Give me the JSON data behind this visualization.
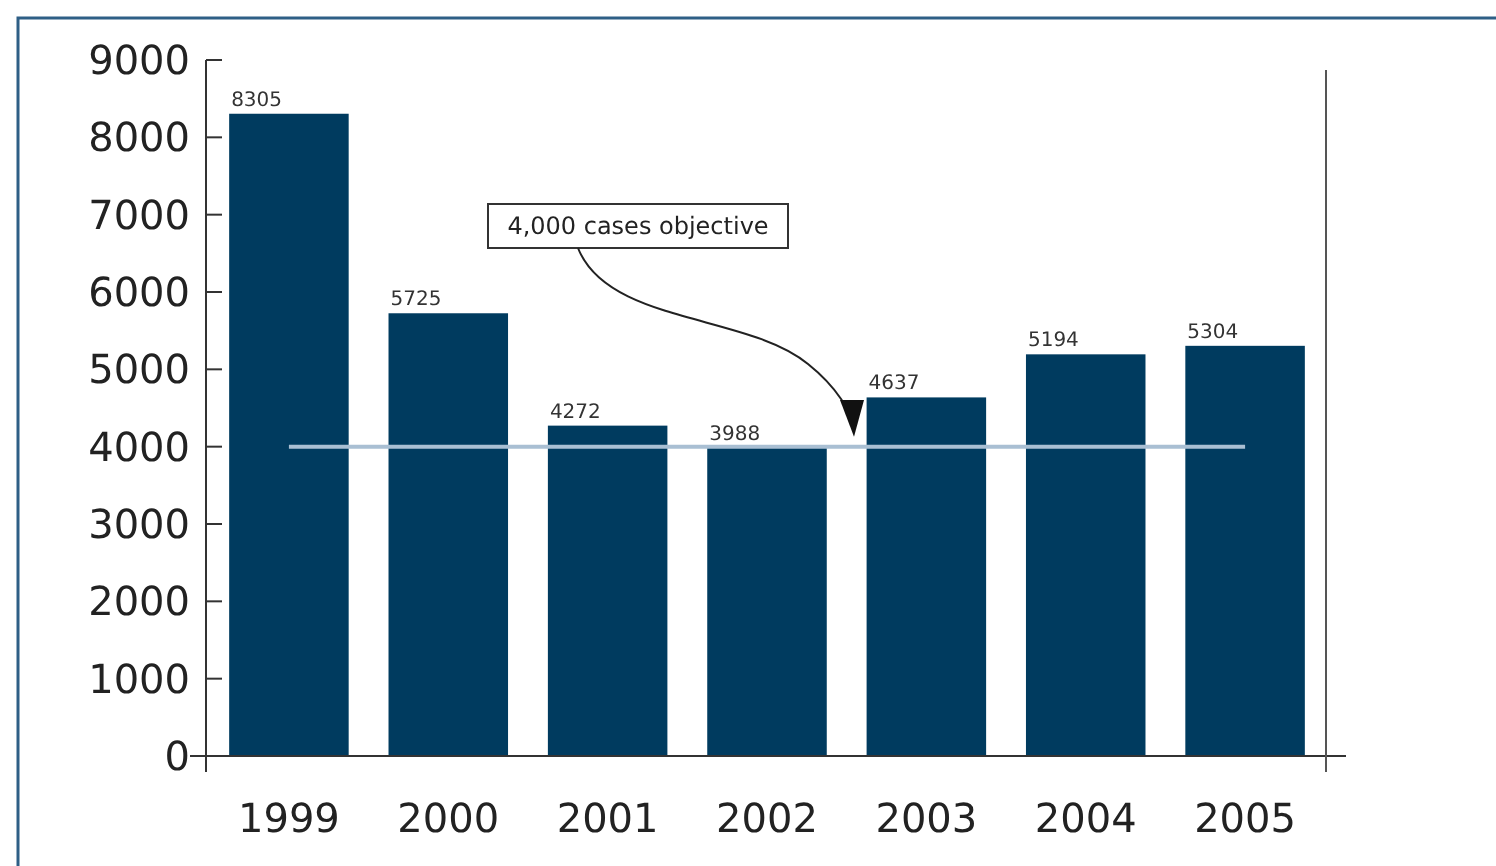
{
  "chart_data": {
    "type": "bar",
    "categories": [
      "1999",
      "2000",
      "2001",
      "2002",
      "2003",
      "2004",
      "2005"
    ],
    "values": [
      8305,
      5725,
      4272,
      3988,
      4637,
      5194,
      5304
    ],
    "color": "#003b5f",
    "ylim": [
      0,
      9000
    ],
    "yticks": [
      0,
      1000,
      2000,
      3000,
      4000,
      5000,
      6000,
      7000,
      8000,
      9000
    ],
    "data_labels": true,
    "grid": false,
    "annotations": [
      "4,000 cases objective"
    ],
    "ref_lines": [
      {
        "axis": "y",
        "value": 4000,
        "color": "#a9bfd3"
      }
    ]
  }
}
